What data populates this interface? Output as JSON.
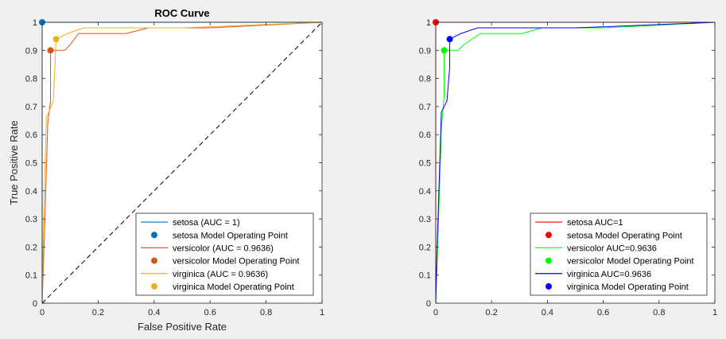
{
  "chart_data": [
    {
      "type": "line",
      "title": "ROC Curve",
      "xlabel": "False Positive Rate",
      "ylabel": "True Positive Rate",
      "xlim": [
        0,
        1
      ],
      "ylim": [
        0,
        1
      ],
      "xticks": [
        "0",
        "0.2",
        "0.4",
        "0.6",
        "0.8",
        "1"
      ],
      "yticks": [
        "0",
        "0.1",
        "0.2",
        "0.3",
        "0.4",
        "0.5",
        "0.6",
        "0.7",
        "0.8",
        "0.9",
        "1"
      ],
      "grid": false,
      "legend_position": "bottom-right",
      "reference_line": {
        "style": "dashed",
        "color": "#000000",
        "points": [
          [
            0,
            0
          ],
          [
            1,
            1
          ]
        ]
      },
      "series": [
        {
          "name": "setosa (AUC = 1)",
          "color": "#0072BD",
          "points": [
            [
              0,
              0
            ],
            [
              0,
              1
            ],
            [
              1,
              1
            ]
          ]
        },
        {
          "name": "setosa Model Operating Point",
          "color": "#0072BD",
          "marker": "dot",
          "points": [
            [
              0,
              1
            ]
          ]
        },
        {
          "name": "versicolor (AUC = 0.9636)",
          "color": "#D95319",
          "points": [
            [
              0,
              0
            ],
            [
              0.01,
              0.3
            ],
            [
              0.02,
              0.64
            ],
            [
              0.03,
              0.72
            ],
            [
              0.03,
              0.9
            ],
            [
              0.08,
              0.9
            ],
            [
              0.1,
              0.92
            ],
            [
              0.13,
              0.96
            ],
            [
              0.3,
              0.96
            ],
            [
              0.38,
              0.98
            ],
            [
              0.6,
              0.98
            ],
            [
              1,
              1
            ]
          ]
        },
        {
          "name": "versicolor Model Operating Point",
          "color": "#D95319",
          "marker": "dot",
          "points": [
            [
              0.03,
              0.9
            ]
          ]
        },
        {
          "name": "virginica (AUC = 0.9636)",
          "color": "#EDB120",
          "points": [
            [
              0,
              0
            ],
            [
              0.005,
              0.3
            ],
            [
              0.015,
              0.66
            ],
            [
              0.04,
              0.72
            ],
            [
              0.05,
              0.94
            ],
            [
              0.09,
              0.96
            ],
            [
              0.15,
              0.98
            ],
            [
              0.5,
              0.98
            ],
            [
              1,
              1
            ]
          ]
        },
        {
          "name": "virginica Model Operating Point",
          "color": "#EDB120",
          "marker": "dot",
          "points": [
            [
              0.05,
              0.94
            ]
          ]
        }
      ]
    },
    {
      "type": "line",
      "title": "",
      "xlabel": "",
      "ylabel": "",
      "xlim": [
        0,
        1
      ],
      "ylim": [
        0,
        1
      ],
      "xticks": [
        "0",
        "0.2",
        "0.4",
        "0.6",
        "0.8",
        "1"
      ],
      "yticks": [
        "0",
        "0.1",
        "0.2",
        "0.3",
        "0.4",
        "0.5",
        "0.6",
        "0.7",
        "0.8",
        "0.9",
        "1"
      ],
      "grid": false,
      "legend_position": "bottom-right",
      "series": [
        {
          "name": "setosa AUC=1",
          "color": "#FF0000",
          "points": [
            [
              0,
              0
            ],
            [
              0,
              1
            ],
            [
              1,
              1
            ]
          ]
        },
        {
          "name": "setosa Model Operating Point",
          "color": "#FF0000",
          "marker": "dot",
          "points": [
            [
              0,
              1
            ]
          ]
        },
        {
          "name": "versicolor AUC=0.9636",
          "color": "#00FF00",
          "points": [
            [
              0,
              0
            ],
            [
              0.01,
              0.3
            ],
            [
              0.02,
              0.62
            ],
            [
              0.03,
              0.74
            ],
            [
              0.03,
              0.9
            ],
            [
              0.08,
              0.9
            ],
            [
              0.1,
              0.92
            ],
            [
              0.16,
              0.96
            ],
            [
              0.31,
              0.96
            ],
            [
              0.38,
              0.98
            ],
            [
              0.6,
              0.98
            ],
            [
              1,
              1
            ]
          ]
        },
        {
          "name": "versicolor Model Operating Point",
          "color": "#00FF00",
          "marker": "dot",
          "points": [
            [
              0.03,
              0.9
            ]
          ]
        },
        {
          "name": "virginica AUC=0.9636",
          "color": "#0000FF",
          "points": [
            [
              0,
              0
            ],
            [
              0.005,
              0.2
            ],
            [
              0.02,
              0.68
            ],
            [
              0.04,
              0.72
            ],
            [
              0.05,
              0.84
            ],
            [
              0.05,
              0.94
            ],
            [
              0.09,
              0.96
            ],
            [
              0.15,
              0.98
            ],
            [
              0.5,
              0.98
            ],
            [
              1,
              1
            ]
          ]
        },
        {
          "name": "virginica Model Operating Point",
          "color": "#0000FF",
          "marker": "dot",
          "points": [
            [
              0.05,
              0.94
            ]
          ]
        }
      ]
    }
  ]
}
